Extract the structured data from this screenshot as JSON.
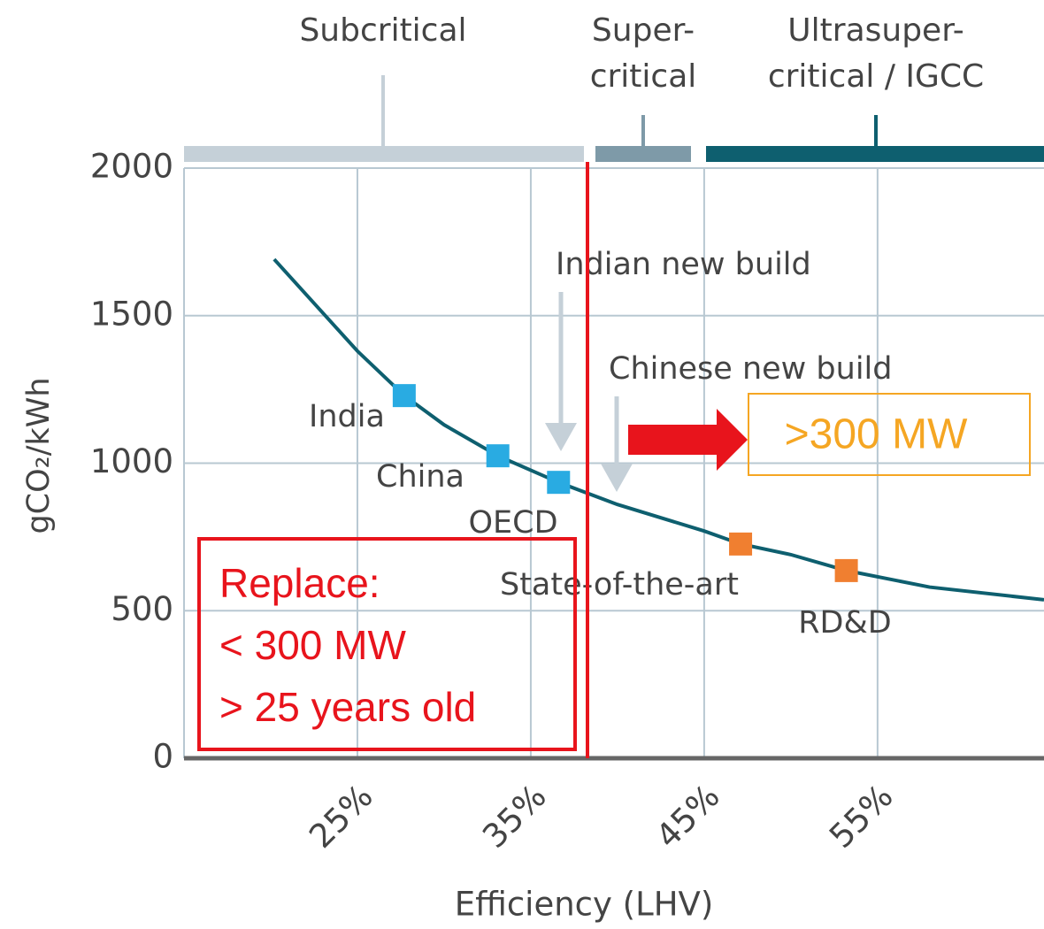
{
  "chart_data": {
    "type": "line",
    "x_label": "Efficiency (LHV)",
    "y_label": "gCO₂/kWh",
    "xlim": [
      15,
      64.6
    ],
    "ylim": [
      0,
      2000
    ],
    "xticks": [
      {
        "value": 25,
        "label": "25%"
      },
      {
        "value": 35,
        "label": "35%"
      },
      {
        "value": 45,
        "label": "45%"
      },
      {
        "value": 55,
        "label": "55%"
      }
    ],
    "yticks": [
      0,
      500,
      1000,
      1500,
      2000
    ],
    "grid": true,
    "series": [
      {
        "color": "#0e5f6f",
        "x": [
          20.2,
          25,
          27.7,
          30,
          33.1,
          36.6,
          40,
          45,
          47.1,
          50,
          53.2,
          58,
          64.6
        ],
        "values": [
          1691,
          1380,
          1229,
          1130,
          1025,
          935,
          860,
          770,
          726,
          690,
          636,
          580,
          537
        ]
      }
    ],
    "points": {
      "labels": [
        "India",
        "China",
        "OECD",
        "State-of-the-art",
        "RD&D"
      ],
      "x": [
        27.7,
        33.1,
        36.6,
        47.1,
        53.2
      ],
      "values": [
        1229,
        1025,
        935,
        726,
        636
      ],
      "colors": [
        "#29abe2",
        "#29abe2",
        "#29abe2",
        "#f07f30",
        "#f07f30"
      ]
    },
    "technology_bands": [
      {
        "label": [
          "Subcritical"
        ],
        "color": "#c5d0d8"
      },
      {
        "label": [
          "Super-",
          "critical"
        ],
        "color": "#7e9aa8"
      },
      {
        "label": [
          "Ultrasuper-",
          "critical / IGCC"
        ],
        "color": "#0e5f6f"
      }
    ],
    "annotations": [
      "Indian new build",
      "Chinese new build"
    ],
    "callout": ">300 MW",
    "replace_box": [
      "Replace:",
      "< 300 MW",
      "> 25 years old"
    ]
  }
}
